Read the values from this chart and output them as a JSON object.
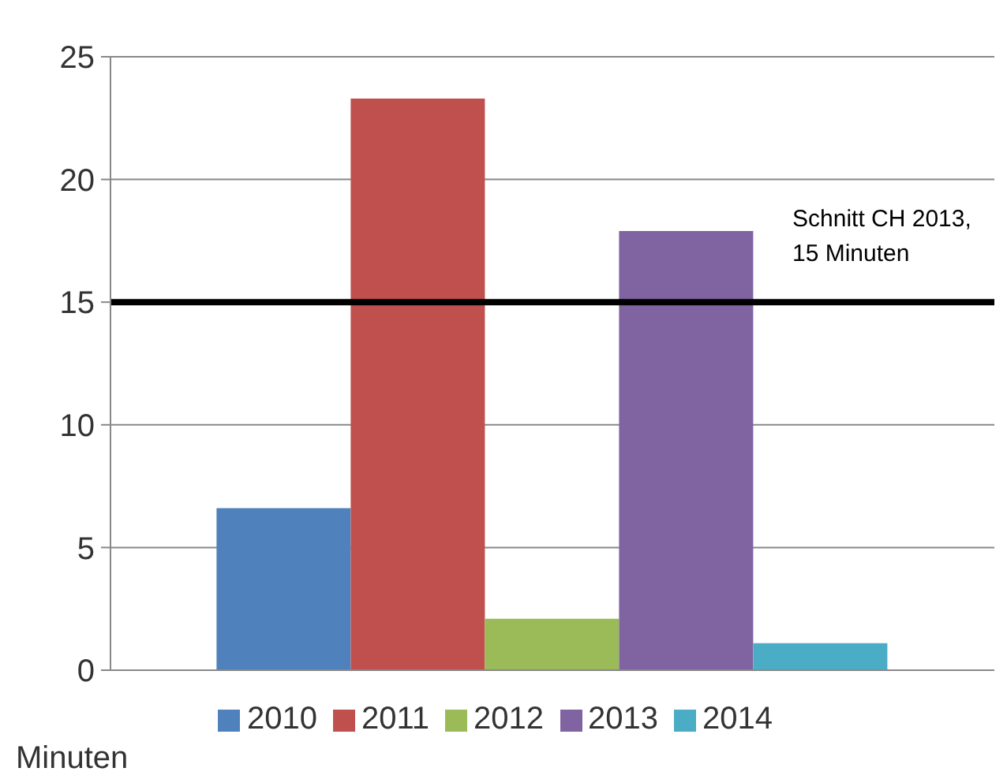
{
  "chart_data": {
    "type": "bar",
    "ylabel": "Minuten",
    "categories": [
      null
    ],
    "series": [
      {
        "name": "2010",
        "color": "#4f81bd",
        "values": [
          6.6
        ]
      },
      {
        "name": "2011",
        "color": "#c0504d",
        "values": [
          23.3
        ]
      },
      {
        "name": "2012",
        "color": "#9bbb59",
        "values": [
          2.1
        ]
      },
      {
        "name": "2013",
        "color": "#8064a2",
        "values": [
          17.9
        ]
      },
      {
        "name": "2014",
        "color": "#4bacc6",
        "values": [
          1.1
        ]
      }
    ],
    "ylim": [
      0,
      25
    ],
    "yticks": [
      0,
      5,
      10,
      15,
      20,
      25
    ],
    "grid": "y",
    "legend": "bottom",
    "ref_lines": [
      {
        "axis": "y",
        "value": 15,
        "label": "Schnitt CH 2013,\n15 Minuten",
        "color": "#000000"
      }
    ]
  }
}
